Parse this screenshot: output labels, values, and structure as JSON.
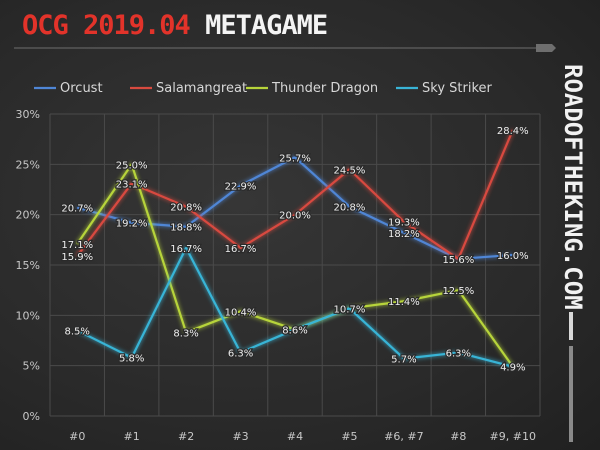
{
  "header": {
    "title_accent": "OCG 2019.04",
    "title_main": "METAGAME"
  },
  "side_brand": "ROADOFTHEKING.COM",
  "colors": {
    "background": "#2b2b2b",
    "grid": "#4a4a4a",
    "axis_text": "#c8c8c8",
    "title_accent": "#e2332a"
  },
  "chart_data": {
    "type": "line",
    "title": "",
    "xlabel": "",
    "ylabel": "",
    "categories": [
      "#0",
      "#1",
      "#2",
      "#3",
      "#4",
      "#5",
      "#6, #7",
      "#8",
      "#9, #10"
    ],
    "ylim": [
      0,
      30
    ],
    "yticks": [
      0,
      5,
      10,
      15,
      20,
      25,
      30
    ],
    "ytick_labels": [
      "0%",
      "5%",
      "10%",
      "15%",
      "20%",
      "25%",
      "30%"
    ],
    "grid": true,
    "legend_position": "top",
    "series": [
      {
        "name": "Orcust",
        "color": "#4f86d6",
        "values": [
          20.7,
          19.2,
          18.8,
          22.9,
          25.7,
          20.8,
          18.2,
          15.6,
          16.0
        ],
        "labels": [
          "20.7%",
          "19.2%",
          "18.8%",
          "22.9%",
          "25.7%",
          "20.8%",
          "18.2%",
          "15.6%",
          "16.0%"
        ]
      },
      {
        "name": "Salamangreat",
        "color": "#d84a3f",
        "values": [
          15.9,
          23.1,
          20.8,
          16.7,
          20.0,
          24.5,
          19.3,
          15.6,
          28.4
        ],
        "labels": [
          "15.9%",
          "23.1%",
          "20.8%",
          "16.7%",
          "20.0%",
          "24.5%",
          "19.3%",
          "15.6%",
          "28.4%"
        ]
      },
      {
        "name": "Thunder Dragon",
        "color": "#b7d43a",
        "values": [
          17.1,
          25.0,
          8.3,
          10.4,
          8.6,
          10.7,
          11.4,
          12.5,
          4.9
        ],
        "labels": [
          "17.1%",
          "25.0%",
          "8.3%",
          "10.4%",
          "8.6%",
          "10.7%",
          "11.4%",
          "12.5%",
          "4.9%"
        ]
      },
      {
        "name": "Sky Striker",
        "color": "#39b4d6",
        "values": [
          8.5,
          5.8,
          16.7,
          6.3,
          8.6,
          10.7,
          5.7,
          6.3,
          4.9
        ],
        "labels": [
          "8.5%",
          "5.8%",
          "16.7%",
          "6.3%",
          "8.6%",
          "10.7%",
          "5.7%",
          "6.3%",
          "4.9%"
        ]
      }
    ]
  }
}
